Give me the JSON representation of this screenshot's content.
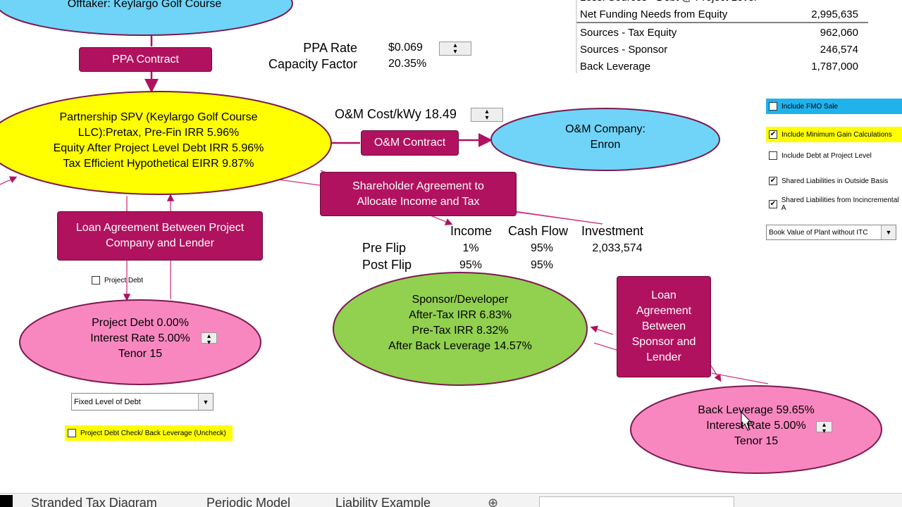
{
  "offtaker": "Offtaker: Keylargo Golf Course",
  "ppa_contract": "PPA Contract",
  "ppa_inputs": [
    {
      "label": "PPA Rate",
      "value": "$0.069"
    },
    {
      "label": "Capacity Factor",
      "value": "20.35%"
    }
  ],
  "funding": {
    "header": "Less: Sources - Debt @ Project Level",
    "rows": [
      {
        "label": "Net Funding Needs from Equity",
        "value": "2,995,635"
      },
      {
        "label": "Sources - Tax Equity",
        "value": "962,060"
      },
      {
        "label": "Sources - Sponsor",
        "value": "246,574"
      },
      {
        "label": "Back Leverage",
        "value": "1,787,000"
      }
    ]
  },
  "partnership": {
    "lines": [
      "Partnership SPV (Keylargo Golf Course",
      "LLC):Pretax, Pre-Fin IRR 5.96%",
      "Equity After Project Level Debt IRR 5.96%",
      "Tax Efficient Hypothetical EIRR 9.87%"
    ]
  },
  "om_cost": "O&M Cost/kWy 18.49",
  "om_contract": "O&M Contract",
  "om_company": {
    "lines": [
      "O&M Company:",
      "Enron"
    ]
  },
  "shareholder_agreement": {
    "lines": [
      "Shareholder Agreement to",
      "Allocate Income and Tax"
    ]
  },
  "project_loan_agreement": {
    "lines": [
      "Loan Agreement Between Project",
      "Company and Lender"
    ]
  },
  "allocation_table": {
    "headers": [
      "Income",
      "Cash Flow",
      "Investment"
    ],
    "rows": [
      {
        "label": "Pre Flip",
        "cells": [
          "1%",
          "95%",
          "2,033,574"
        ]
      },
      {
        "label": "Post Flip",
        "cells": [
          "95%",
          "95%"
        ]
      }
    ]
  },
  "project_debt": {
    "lines": [
      "Project Debt 0.00%",
      "Interest Rate 5.00%",
      "Tenor 15"
    ]
  },
  "sponsor": {
    "lines": [
      "Sponsor/Developer",
      "After-Tax IRR 6.83%",
      "Pre-Tax IRR 8.32%",
      "After Back Leverage 14.57%"
    ]
  },
  "sponsor_loan_agreement": {
    "lines": [
      "Loan",
      "Agreement",
      "Between",
      "Sponsor and",
      "Lender"
    ]
  },
  "back_leverage": {
    "lines": [
      "Back Leverage 59.65%",
      "Interest Rate 5.00%",
      "Tenor 15"
    ]
  },
  "controls": {
    "project_debt_checkbox": {
      "label": "Project Debt",
      "checked": false
    },
    "debt_dropdown": "Fixed Level of Debt",
    "debt_check_checkbox": {
      "label": "Project Debt Check/ Back Leverage (Uncheck)",
      "checked": false
    },
    "right_checkboxes": [
      {
        "label": "Include FMO Sale",
        "checked": false
      },
      {
        "label": "Include Minimum Gain Calculations",
        "checked": true
      },
      {
        "label": "Include Debt at Project Level",
        "checked": false
      },
      {
        "label": "Shared Liabilities in Outside Basis",
        "checked": true
      },
      {
        "label": "Shared Liabilities from Incincremental A",
        "checked": true
      }
    ],
    "basis_dropdown": "Book Value of Plant without ITC"
  },
  "sheet_tabs": [
    "Stranded Tax Diagram",
    "Periodic Model",
    "Liability Example"
  ]
}
